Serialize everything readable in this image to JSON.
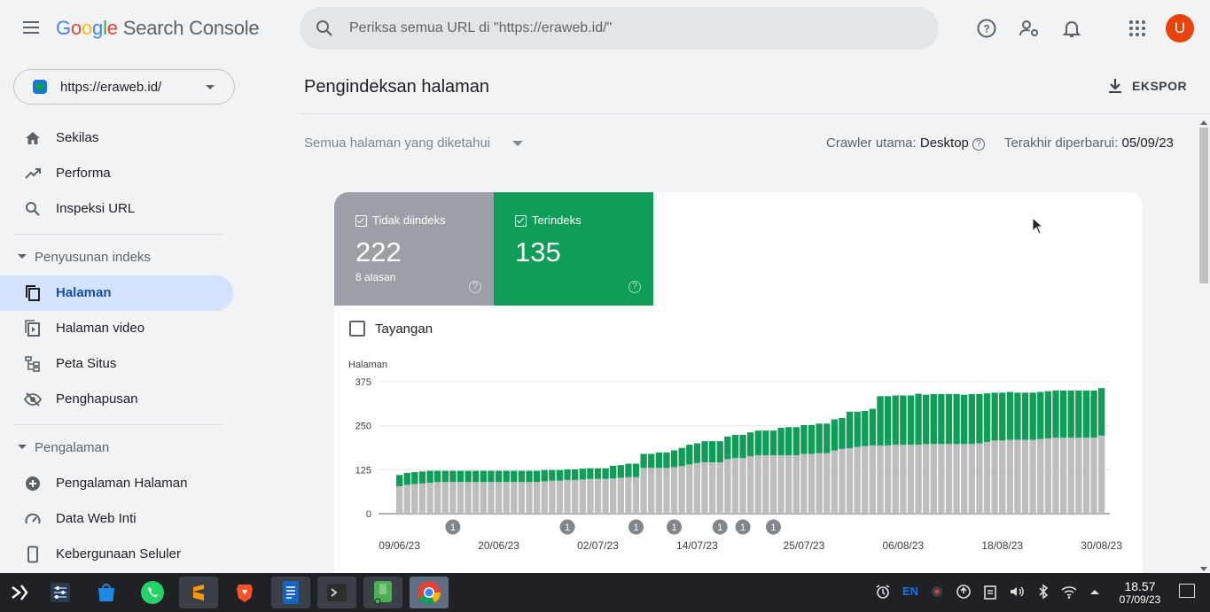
{
  "header": {
    "logo_parts": [
      "G",
      "o",
      "o",
      "g",
      "l",
      "e"
    ],
    "product": "Search Console",
    "search_placeholder": "Periksa semua URL di \"https://eraweb.id/\"",
    "avatar_letter": "U",
    "icons": [
      "menu-icon",
      "search-icon",
      "help-icon",
      "settings-user-icon",
      "notifications-icon",
      "apps-icon"
    ]
  },
  "sidebar": {
    "property": "https://eraweb.id/",
    "items_top": [
      {
        "label": "Sekilas",
        "icon": "home-icon"
      },
      {
        "label": "Performa",
        "icon": "trending-up-icon"
      },
      {
        "label": "Inspeksi URL",
        "icon": "search-icon"
      }
    ],
    "section1": "Penyusunan indeks",
    "items_index": [
      {
        "label": "Halaman",
        "icon": "pages-icon",
        "active": true
      },
      {
        "label": "Halaman video",
        "icon": "video-page-icon"
      },
      {
        "label": "Peta Situs",
        "icon": "sitemap-icon"
      },
      {
        "label": "Penghapusan",
        "icon": "eye-off-icon"
      }
    ],
    "section2": "Pengalaman",
    "items_exp": [
      {
        "label": "Pengalaman Halaman",
        "icon": "plus-circle-icon"
      },
      {
        "label": "Data Web Inti",
        "icon": "speed-icon"
      },
      {
        "label": "Kebergunaan Seluler",
        "icon": "phone-icon"
      }
    ]
  },
  "main": {
    "title": "Pengindeksan halaman",
    "export_label": "EKSPOR",
    "filter_label": "Semua halaman yang diketahui",
    "crawler_label": "Crawler utama:",
    "crawler_value": "Desktop",
    "updated_label": "Terakhir diperbarui:",
    "updated_value": "05/09/23",
    "tile_not_indexed": {
      "label": "Tidak diindeks",
      "value": "222",
      "sub": "8 alasan",
      "color": "#9aa0a6"
    },
    "tile_indexed": {
      "label": "Terindeks",
      "value": "135",
      "color": "#0f9d58"
    },
    "impressions_label": "Tayangan"
  },
  "chart_data": {
    "type": "bar",
    "stacked": true,
    "ylabel": "Halaman",
    "ylim": [
      0,
      375
    ],
    "yticks": [
      0,
      125,
      250,
      375
    ],
    "xtick_labels": [
      "09/06/23",
      "20/06/23",
      "02/07/23",
      "14/07/23",
      "25/07/23",
      "06/08/23",
      "18/08/23",
      "30/08/23"
    ],
    "annotation_label": "1",
    "annotation_bar_indices": [
      7,
      22,
      31,
      36,
      42,
      45,
      49
    ],
    "series": [
      {
        "name": "Tidak diindeks",
        "color": "#bdbdbd",
        "values": [
          78,
          82,
          84,
          86,
          88,
          90,
          90,
          90,
          90,
          90,
          90,
          90,
          90,
          90,
          90,
          90,
          90,
          90,
          90,
          92,
          94,
          94,
          96,
          96,
          97,
          99,
          99,
          99,
          100,
          102,
          104,
          104,
          130,
          130,
          130,
          130,
          132,
          135,
          140,
          144,
          146,
          146,
          146,
          155,
          158,
          158,
          163,
          166,
          166,
          166,
          166,
          166,
          166,
          170,
          170,
          172,
          172,
          180,
          184,
          186,
          190,
          192,
          194,
          194,
          194,
          196,
          196,
          196,
          196,
          198,
          198,
          198,
          198,
          198,
          198,
          198,
          200,
          204,
          208,
          208,
          210,
          210,
          210,
          210,
          212,
          214,
          216,
          216,
          216,
          216,
          216,
          216,
          222
        ]
      },
      {
        "name": "Terindeks",
        "color": "#0f9d58",
        "values": [
          32,
          34,
          34,
          34,
          34,
          32,
          32,
          32,
          32,
          32,
          32,
          32,
          32,
          32,
          32,
          32,
          32,
          32,
          32,
          32,
          30,
          30,
          30,
          30,
          31,
          30,
          30,
          30,
          36,
          36,
          38,
          38,
          40,
          40,
          44,
          44,
          48,
          52,
          56,
          56,
          60,
          60,
          60,
          64,
          66,
          66,
          68,
          70,
          70,
          70,
          78,
          80,
          80,
          82,
          82,
          84,
          84,
          88,
          88,
          104,
          100,
          100,
          104,
          140,
          140,
          140,
          140,
          140,
          145,
          140,
          142,
          142,
          142,
          142,
          140,
          142,
          140,
          138,
          136,
          136,
          136,
          134,
          134,
          134,
          134,
          134,
          134,
          134,
          134,
          134,
          134,
          134,
          135
        ]
      }
    ]
  },
  "taskbar": {
    "apps": [
      "app-launcher-icon",
      "system-settings-icon",
      "store-icon",
      "whatsapp-icon",
      "sublime-text-icon",
      "brave-browser-icon",
      "libreoffice-writer-icon",
      "terminal-icon",
      "android-app-icon",
      "chrome-icon"
    ],
    "lang": "EN",
    "time": "18.57",
    "date": "07/09/23"
  }
}
